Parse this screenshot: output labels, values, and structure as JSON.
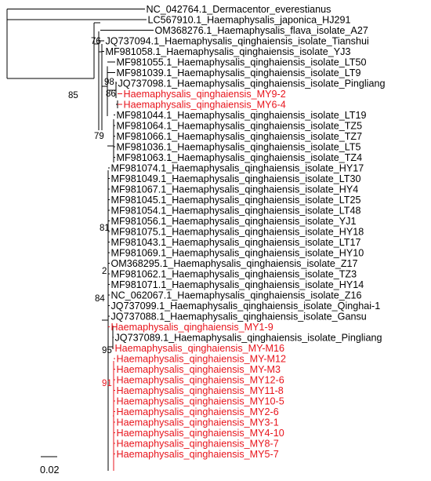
{
  "colors": {
    "branch": "#000000",
    "highlight": "#e8141c"
  },
  "taxa": [
    "NC_042764.1_Dermacentor_everestianus",
    "LC567910.1_Haemaphysalis_japonica_HJ291",
    "OM368276.1_Haemaphysalis_flava_isolate_A27",
    "JQ737094.1_Haemaphysalis_qinghaiensis_isolate_Tianshui",
    "MF981058.1_Haemaphysalis_qinghaiensis_isolate_YJ3",
    "MF981055.1_Haemaphysalis_qinghaiensis_isolate_LT50",
    "MF981039.1_Haemaphysalis_qinghaiensis_isolate_LT9",
    "JQ737098.1_Haemaphysalis_qinghaiensis_isolate_Pingliang",
    "Haemaphysalis_qinghaiensis_MY9-2",
    "Haemaphysalis_qinghaiensis_MY6-4",
    "MF981044.1_Haemaphysalis_qinghaiensis_isolate_LT19",
    "MF981064.1_Haemaphysalis_qinghaiensis_isolate_TZ5",
    "MF981066.1_Haemaphysalis_qinghaiensis_isolate_TZ7",
    "MF981036.1_Haemaphysalis_qinghaiensis_isolate_LT5",
    "MF981063.1_Haemaphysalis_qinghaiensis_isolate_TZ4",
    "MF981074.1_Haemaphysalis_qinghaiensis_isolate_HY17",
    "MF981049.1_Haemaphysalis_qinghaiensis_isolate_LT30",
    "MF981067.1_Haemaphysalis_qinghaiensis_isolate_HY4",
    "MF981045.1_Haemaphysalis_qinghaiensis_isolate_LT25",
    "MF981054.1_Haemaphysalis_qinghaiensis_isolate_LT48",
    "MF981056.1_Haemaphysalis_qinghaiensis_isolate_YJ1",
    "MF981075.1_Haemaphysalis_qinghaiensis_isolate_HY18",
    "MF981043.1_Haemaphysalis_qinghaiensis_isolate_LT17",
    "MF981069.1_Haemaphysalis_qinghaiensis_isolate_HY10",
    "OM368295.1_Haemaphysalis_qinghaiensis_isolate_Z17",
    "MF981062.1_Haemaphysalis_qinghaiensis_isolate_TZ3",
    "MF981071.1_Haemaphysalis_qinghaiensis_isolate_HY14",
    "NC_062067.1_Haemaphysalis_qinghaiensis_isolate_Z16",
    "JQ737099.1_Haemaphysalis_qinghaiensis_isolate_Qinghai-1",
    "JQ737088.1_Haemaphysalis_qinghaiensis_isolate_Gansu",
    "Haemaphysalis_qinghaiensis_MY1-9",
    "JQ737089.1_Haemaphysalis_qinghaiensis_isolate_Pingliang",
    "Haemaphysalis_qinghaiensis_MY-M16",
    "Haemaphysalis_qinghaiensis_MY-M12",
    "Haemaphysalis_qinghaiensis_MY-M3",
    "Haemaphysalis_qinghaiensis_MY12-6",
    "Haemaphysalis_qinghaiensis_MY11-8",
    "Haemaphysalis_qinghaiensis_MY10-5",
    "Haemaphysalis_qinghaiensis_MY2-6",
    "Haemaphysalis_qinghaiensis_MY3-1",
    "Haemaphysalis_qinghaiensis_MY4-10",
    "Haemaphysalis_qinghaiensis_MY8-7",
    "Haemaphysalis_qinghaiensis_MY5-7"
  ],
  "highlighted_taxa": [
    8,
    9,
    30,
    32,
    33,
    34,
    35,
    36,
    37,
    38,
    39,
    40,
    41,
    42
  ],
  "bootstrap": [
    "76",
    "98",
    "85",
    "86",
    "79",
    "81",
    "2",
    "84",
    "95",
    "91"
  ],
  "bootstrap_highlighted": [
    9
  ],
  "scale_bar": {
    "label": "0.02"
  }
}
